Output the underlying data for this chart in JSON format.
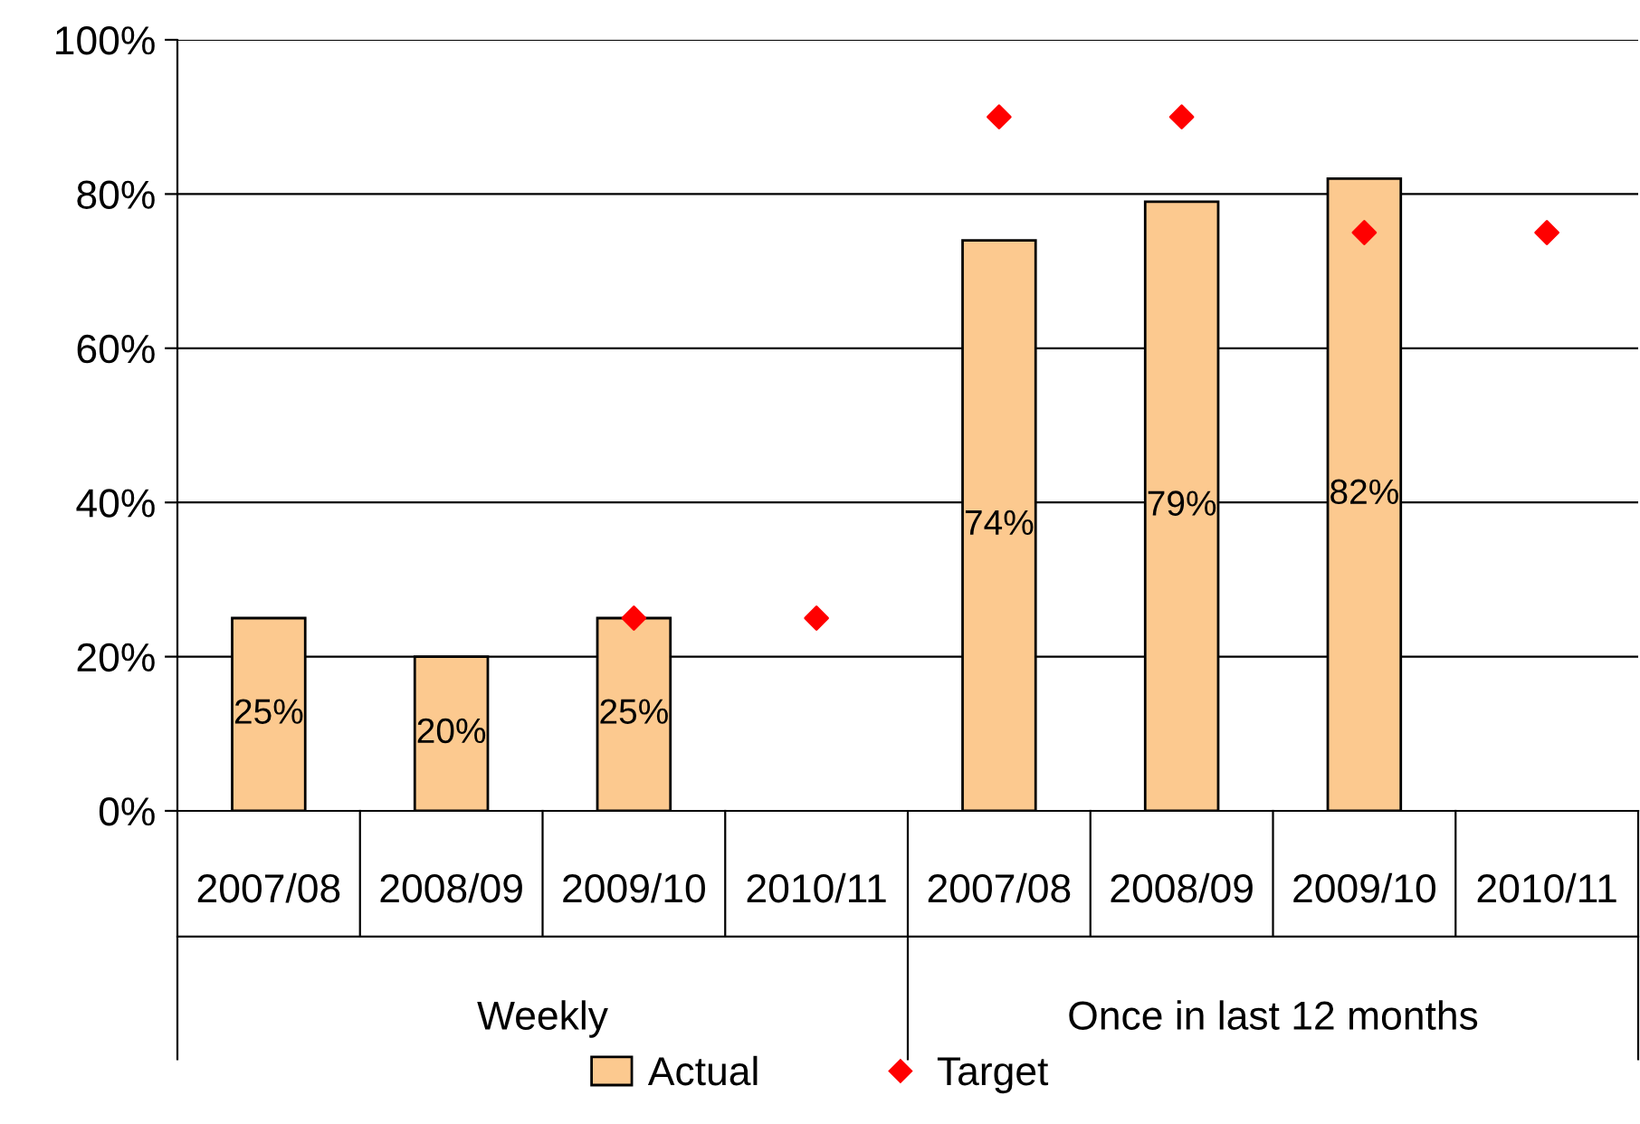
{
  "chart_data": {
    "type": "bar",
    "categories": [
      "2007/08",
      "2008/09",
      "2009/10",
      "2010/11",
      "2007/08",
      "2008/09",
      "2009/10",
      "2010/11"
    ],
    "annotations": [
      "Weekly",
      "Once in last 12 months"
    ],
    "series": [
      {
        "name": "Actual",
        "color": "#fcc98f",
        "values": [
          25,
          20,
          25,
          null,
          74,
          79,
          82,
          null
        ],
        "value_labels": [
          "25%",
          "20%",
          "25%",
          null,
          "74%",
          "79%",
          "82%",
          null
        ]
      },
      {
        "name": "Target",
        "type": "scatter",
        "color": "#ff0000",
        "marker": "diamond",
        "values": [
          null,
          null,
          25,
          25,
          90,
          90,
          75,
          75
        ]
      }
    ],
    "ylim": [
      0,
      100
    ],
    "yticks": [
      {
        "value": 0,
        "label": "0%"
      },
      {
        "value": 20,
        "label": "20%"
      },
      {
        "value": 40,
        "label": "40%"
      },
      {
        "value": 60,
        "label": "60%"
      },
      {
        "value": 80,
        "label": "80%"
      },
      {
        "value": 100,
        "label": "100%"
      }
    ],
    "grid": "y",
    "legend": "bottom"
  }
}
